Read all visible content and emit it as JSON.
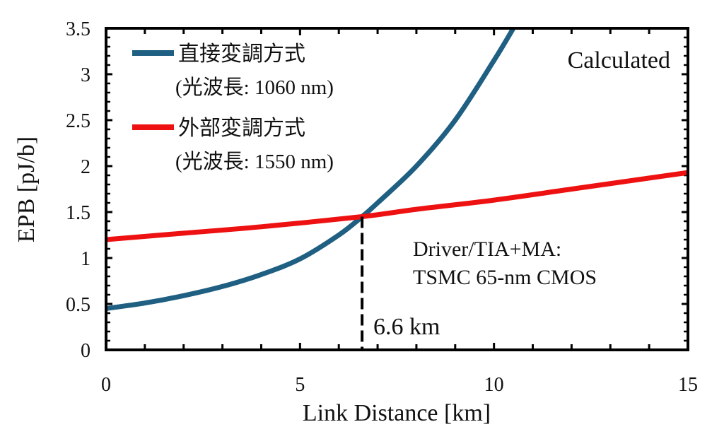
{
  "chart_data": {
    "type": "line",
    "title": "",
    "xlabel": "Link Distance [km]",
    "ylabel": "EPB [pJ/b]",
    "xlim": [
      0,
      15
    ],
    "ylim": [
      0,
      3.5
    ],
    "x_ticks": [
      "0",
      "5",
      "10",
      "15"
    ],
    "y_ticks": [
      "0",
      "0.5",
      "1",
      "1.5",
      "2",
      "2.5",
      "3",
      "3.5"
    ],
    "grid": false,
    "legend_position": "top-left",
    "series": [
      {
        "name": "直接変調方式",
        "name_sub": "(光波長: 1060 nm)",
        "color": "#1f5f82",
        "x": [
          0,
          1,
          2,
          3,
          4,
          5,
          6,
          6.6,
          7,
          8,
          9,
          10,
          10.5
        ],
        "y": [
          0.45,
          0.51,
          0.59,
          0.69,
          0.82,
          0.99,
          1.25,
          1.45,
          1.6,
          2.0,
          2.5,
          3.15,
          3.5
        ]
      },
      {
        "name": "外部変調方式",
        "name_sub": "(光波長: 1550 nm)",
        "color": "#ee1111",
        "x": [
          0,
          2,
          4,
          6.6,
          8,
          10,
          12,
          15
        ],
        "y": [
          1.2,
          1.27,
          1.34,
          1.45,
          1.53,
          1.63,
          1.75,
          1.93
        ]
      }
    ],
    "annotations": {
      "corner_label": "Calculated",
      "note_line1": "Driver/TIA+MA:",
      "note_line2": "TSMC 65-nm CMOS",
      "marker_x": 6.6,
      "marker_y": 1.45,
      "marker_label": "6.6 km"
    }
  }
}
